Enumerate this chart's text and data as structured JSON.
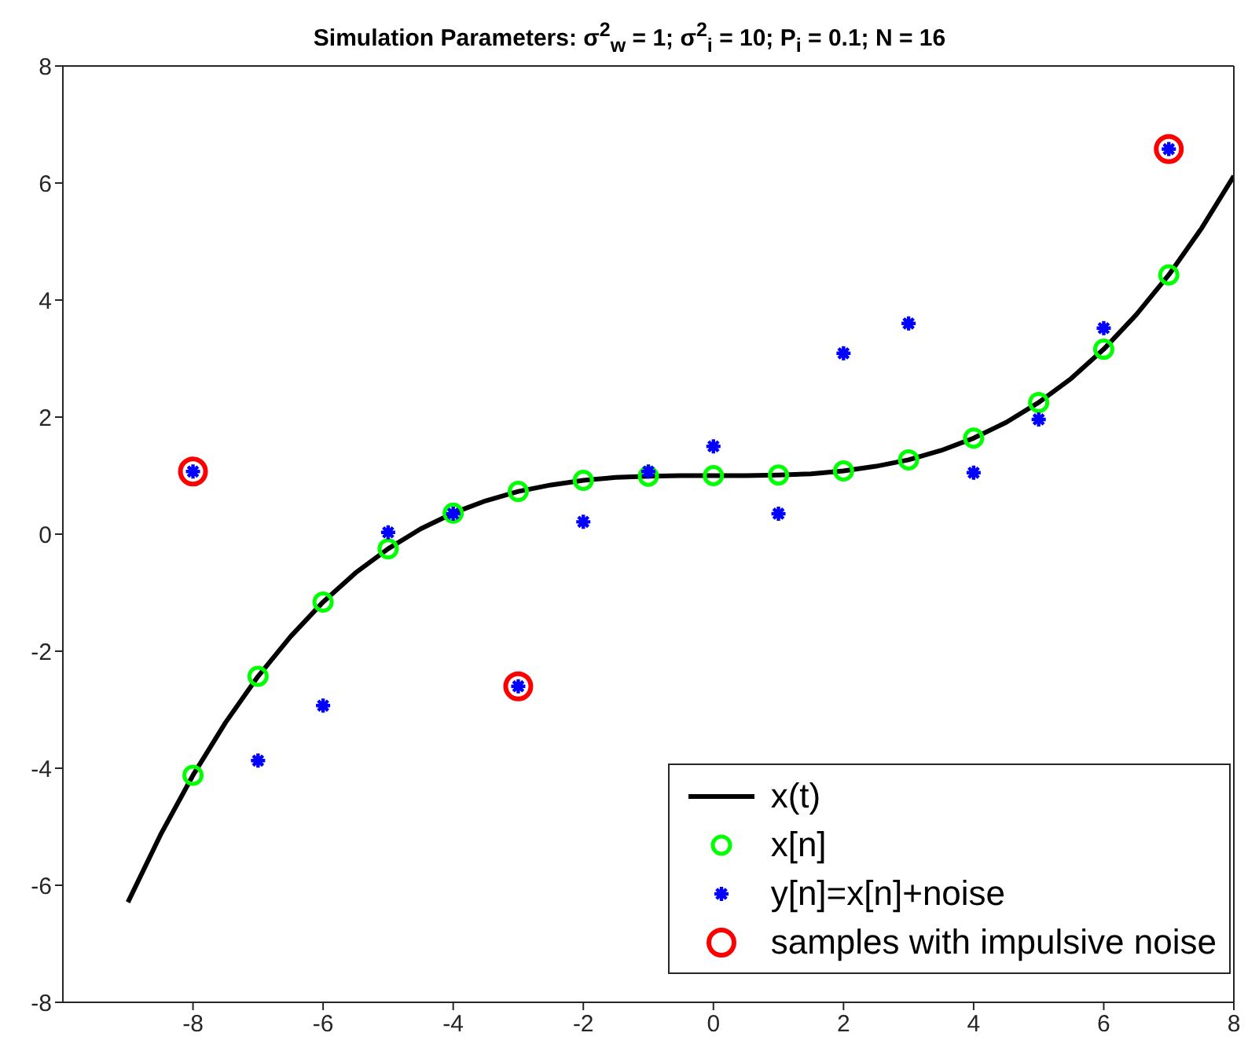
{
  "chart_data": {
    "type": "scatter",
    "title": "Simulation Parameters: σ$^{2}$$_{w}$ = 1; σ$^{2}$$_{i}$ = 10; P$_{i}$ = 0.1; N = 16",
    "xlim": [
      -10,
      8
    ],
    "xticks": [
      -8,
      -6,
      -4,
      -2,
      0,
      2,
      4,
      6,
      8
    ],
    "ylim": [
      -8,
      8
    ],
    "yticks": [
      -8,
      -6,
      -4,
      -2,
      0,
      2,
      4,
      6,
      8
    ],
    "legend": "bottom right",
    "series": [
      {
        "name": "x(t)",
        "type": "line",
        "color": "#000000",
        "marker": "none",
        "line_style": "solid",
        "x": [
          -9,
          -8.5,
          -8,
          -7.5,
          -7,
          -6.5,
          -6,
          -5.5,
          -5,
          -4.5,
          -4,
          -3.5,
          -3,
          -2.5,
          -2,
          -1.5,
          -1,
          -0.5,
          0,
          0.5,
          1,
          1.5,
          2,
          2.5,
          3,
          3.5,
          4,
          4.5,
          5,
          5.5,
          6,
          6.5,
          7,
          7.5,
          8
        ],
        "values": [
          -6.29,
          -5.14,
          -4.12,
          -3.22,
          -2.43,
          -1.75,
          -1.16,
          -0.66,
          -0.25,
          0.09,
          0.36,
          0.57,
          0.73,
          0.84,
          0.92,
          0.97,
          0.99,
          1.0,
          1.0,
          1.0,
          1.01,
          1.03,
          1.08,
          1.16,
          1.27,
          1.43,
          1.64,
          1.91,
          2.25,
          2.66,
          3.16,
          3.75,
          4.43,
          5.22,
          6.12
        ]
      },
      {
        "name": "x[n]",
        "color": "#00ff00",
        "marker": "circle",
        "x": [
          -8,
          -7,
          -6,
          -5,
          -4,
          -3,
          -2,
          -1,
          0,
          1,
          2,
          3,
          4,
          5,
          6,
          7
        ],
        "values": [
          -4.12,
          -2.43,
          -1.16,
          -0.25,
          0.36,
          0.73,
          0.92,
          0.99,
          1.0,
          1.01,
          1.08,
          1.27,
          1.64,
          2.25,
          3.16,
          4.43
        ]
      },
      {
        "name": "y[n]=x[n]+noise",
        "color": "#0000ff",
        "marker": "cross",
        "x": [
          -8,
          -7,
          -6,
          -5,
          -4,
          -3,
          -2,
          -1,
          0,
          1,
          2,
          3,
          4,
          5,
          6,
          7
        ],
        "values": [
          1.07,
          -3.87,
          -2.93,
          0.03,
          0.35,
          -2.6,
          0.21,
          1.07,
          1.5,
          0.35,
          3.09,
          3.6,
          1.05,
          1.96,
          3.52,
          6.58
        ]
      },
      {
        "name": "samples with impulsive noise",
        "color": "#ff0000",
        "marker": "circle",
        "x": [
          -8,
          -3,
          7
        ],
        "values": [
          1.07,
          -2.6,
          6.58
        ]
      }
    ]
  }
}
